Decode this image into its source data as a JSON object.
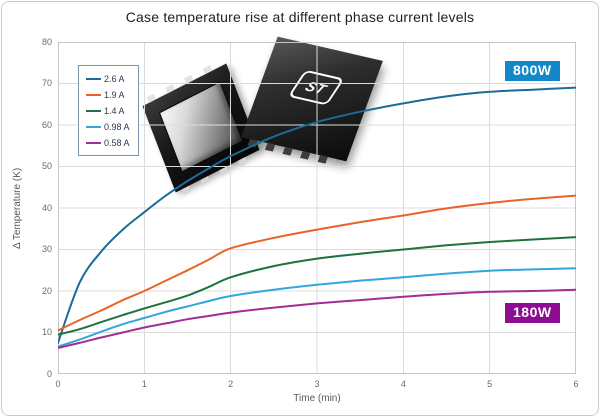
{
  "chart_data": {
    "type": "line",
    "title": "Case temperature rise at different phase current levels",
    "xlabel": "Time (min)",
    "ylabel": "Δ Temperature (K)",
    "xlim": [
      0,
      6
    ],
    "ylim": [
      0,
      80
    ],
    "xticks": [
      0,
      1,
      2,
      3,
      4,
      5,
      6
    ],
    "yticks": [
      0,
      10,
      20,
      30,
      40,
      50,
      60,
      70,
      80
    ],
    "grid": true,
    "legend_position": "top-left",
    "x": [
      0,
      0.25,
      0.5,
      0.75,
      1,
      1.25,
      1.5,
      1.75,
      2,
      2.5,
      3,
      3.5,
      4,
      4.5,
      5,
      5.5,
      6
    ],
    "series": [
      {
        "name": "2.6 A",
        "color": "#1c6b99",
        "values": [
          7.5,
          22,
          29.5,
          34.8,
          39,
          43,
          46.5,
          49.6,
          52.5,
          57.2,
          60.7,
          63.2,
          65.2,
          66.9,
          68,
          68.5,
          69
        ]
      },
      {
        "name": "1.9 A",
        "color": "#e96325",
        "values": [
          10.5,
          13,
          15.3,
          17.8,
          20,
          22.5,
          25,
          27.6,
          30.3,
          32.8,
          34.8,
          36.6,
          38.2,
          39.9,
          41.2,
          42.2,
          43
        ]
      },
      {
        "name": "1.4 A",
        "color": "#1d7240",
        "values": [
          9.5,
          10.8,
          12.5,
          14.2,
          15.8,
          17.3,
          18.9,
          21,
          23.3,
          26,
          27.8,
          29,
          30,
          31,
          31.8,
          32.4,
          33
        ]
      },
      {
        "name": "0.98 A",
        "color": "#33a6dc",
        "values": [
          6.6,
          8.3,
          10.2,
          12,
          13.5,
          15,
          16.3,
          17.6,
          18.8,
          20.3,
          21.5,
          22.5,
          23.3,
          24.2,
          24.9,
          25.2,
          25.5
        ]
      },
      {
        "name": "0.58 A",
        "color": "#a22d96",
        "values": [
          6.3,
          7.5,
          8.8,
          10,
          11.2,
          12.2,
          13.2,
          14,
          14.8,
          16,
          17,
          17.8,
          18.6,
          19.3,
          19.8,
          20,
          20.3
        ]
      }
    ],
    "annotations": [
      {
        "text": "800W",
        "bg": "#1487c8",
        "color": "#ffffff"
      },
      {
        "text": "180W",
        "bg": "#8c0d8f",
        "color": "#ffffff"
      }
    ]
  },
  "inset_image": {
    "description": "Two power package chips, top and bottom view",
    "logo_text": "ST"
  }
}
